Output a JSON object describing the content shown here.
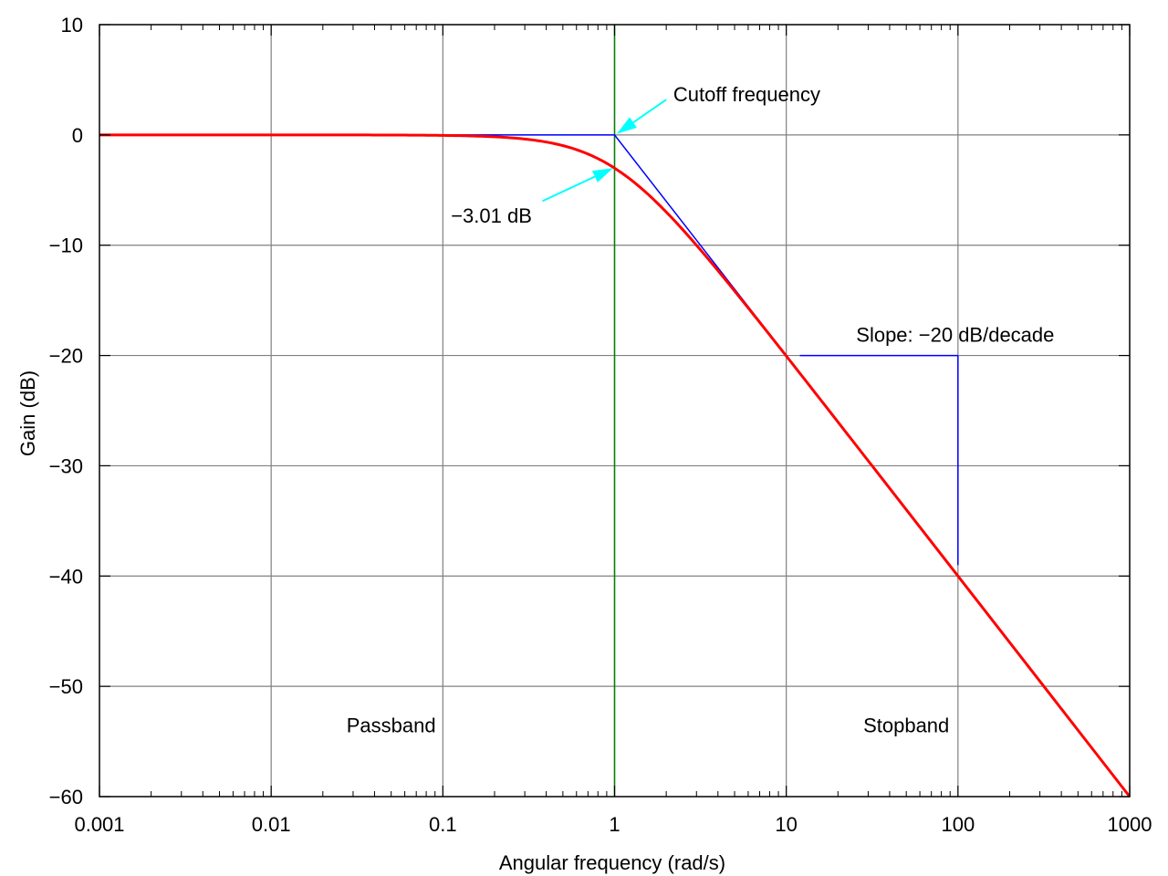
{
  "chart_data": {
    "type": "line",
    "title": "",
    "xlabel": "Angular frequency (rad/s)",
    "ylabel": "Gain (dB)",
    "xscale": "log",
    "xlim": [
      0.001,
      1000
    ],
    "ylim": [
      -60,
      10
    ],
    "grid": true,
    "legend": "none",
    "xticks": [
      {
        "value": 0.001,
        "label": "0.001"
      },
      {
        "value": 0.01,
        "label": "0.01"
      },
      {
        "value": 0.1,
        "label": "0.1"
      },
      {
        "value": 1,
        "label": "1"
      },
      {
        "value": 10,
        "label": "10"
      },
      {
        "value": 100,
        "label": "100"
      },
      {
        "value": 1000,
        "label": "1000"
      }
    ],
    "yticks": [
      {
        "value": 10,
        "label": "10"
      },
      {
        "value": 0,
        "label": "0"
      },
      {
        "value": -10,
        "label": "−10"
      },
      {
        "value": -20,
        "label": "−20"
      },
      {
        "value": -30,
        "label": "−30"
      },
      {
        "value": -40,
        "label": "−40"
      },
      {
        "value": -50,
        "label": "−50"
      },
      {
        "value": -60,
        "label": "−60"
      }
    ],
    "series": [
      {
        "name": "",
        "color": "#ff0000",
        "style": "curve",
        "x": [
          0.001,
          0.01,
          0.1,
          0.2,
          0.3,
          0.5,
          0.7,
          1,
          1.5,
          2,
          3,
          5,
          7,
          10,
          20,
          50,
          100,
          200,
          500,
          1000
        ],
        "y": [
          0,
          0,
          -0.04,
          -0.17,
          -0.37,
          -0.97,
          -1.73,
          -3.01,
          -5.12,
          -6.99,
          -10,
          -14.15,
          -17.0,
          -20.04,
          -26.03,
          -33.98,
          -40,
          -46.02,
          -53.98,
          -60
        ]
      },
      {
        "name": "",
        "color": "#0000ff",
        "style": "asymptote",
        "x": [
          0.1,
          1,
          10
        ],
        "y": [
          0,
          0,
          -20
        ]
      }
    ],
    "cutoff_line": {
      "x": 1,
      "color": "#008000"
    },
    "slope_marker": {
      "color": "#0000ff",
      "horizontal": {
        "x": [
          12,
          100
        ],
        "y": -20
      },
      "vertical": {
        "x": 100,
        "y": [
          -20,
          -39
        ]
      }
    },
    "annotations": [
      {
        "text": "Cutoff frequency",
        "x": 2.2,
        "y": 3.7,
        "arrow_from": [
          2.0,
          3.2
        ],
        "arrow_to": [
          1.03,
          0.1
        ]
      },
      {
        "text": "−3.01 dB",
        "x": 0.33,
        "y": -7.3,
        "arrow_from": [
          0.38,
          -6.0
        ],
        "arrow_to": [
          0.98,
          -3.01
        ]
      },
      {
        "text": "Slope: −20 dB/decade",
        "x": 100,
        "y": -18.1
      },
      {
        "text": "Passband",
        "x": 0.05,
        "y": -53.5
      },
      {
        "text": "Stopband",
        "x": 50,
        "y": -53.5
      }
    ],
    "colors": {
      "arrow": "#00ffff",
      "grid": "#808080",
      "axis": "#000000"
    }
  }
}
